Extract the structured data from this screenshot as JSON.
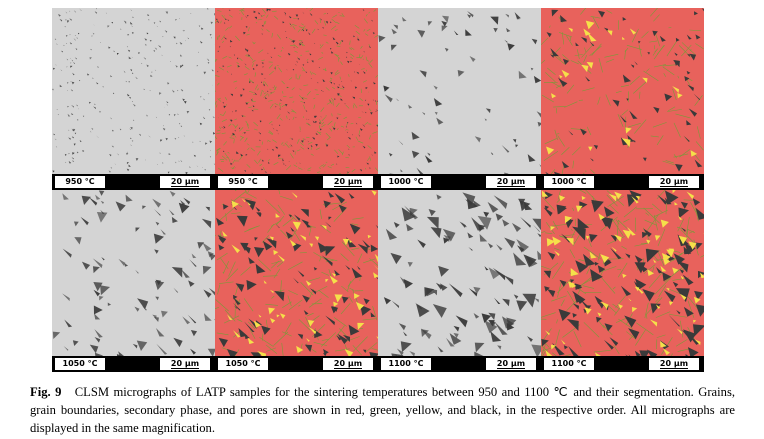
{
  "figure": {
    "panels": [
      {
        "temp": "950 °C",
        "type": "micrograph",
        "scale": "20 µm"
      },
      {
        "temp": "950 °C",
        "type": "segmentation",
        "scale": "20 µm"
      },
      {
        "temp": "1000 °C",
        "type": "micrograph",
        "scale": "20 µm"
      },
      {
        "temp": "1000 °C",
        "type": "segmentation",
        "scale": "20 µm"
      },
      {
        "temp": "1050 °C",
        "type": "micrograph",
        "scale": "20 µm"
      },
      {
        "temp": "1050 °C",
        "type": "segmentation",
        "scale": "20 µm"
      },
      {
        "temp": "1100 °C",
        "type": "micrograph",
        "scale": "20 µm"
      },
      {
        "temp": "1100 °C",
        "type": "segmentation",
        "scale": "20 µm"
      }
    ],
    "colors": {
      "grains": "#e8625c",
      "grain_boundaries": "#7a9a3a",
      "secondary_phase": "#f5e04a",
      "pores": "#3a3a3a",
      "micrograph_bg": "#d4d4d4"
    }
  },
  "caption": {
    "label": "Fig. 9",
    "text": "CLSM micrographs of LATP samples for the sintering temperatures between 950 and 1100 ℃ and their segmentation. Grains, grain boundaries, secondary phase, and pores are shown in red, green, yellow, and black, in the respective order. All micrographs are displayed in the same magnification."
  }
}
